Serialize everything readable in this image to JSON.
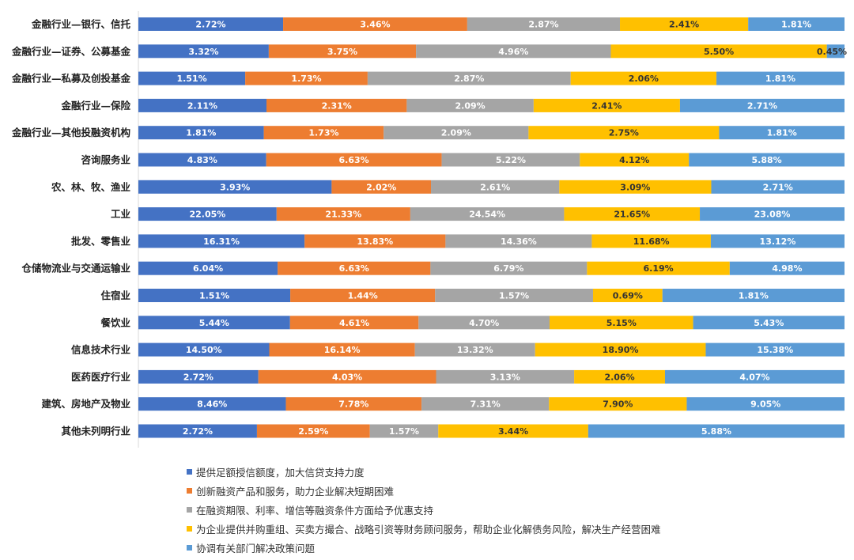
{
  "chart_data": {
    "type": "bar",
    "orientation": "horizontal",
    "stacked": "percent",
    "title": "",
    "xlabel": "",
    "ylabel": "",
    "grid": false,
    "legend_position": "bottom",
    "categories": [
      "金融行业—银行、信托",
      "金融行业—证券、公募基金",
      "金融行业—私募及创投基金",
      "金融行业—保险",
      "金融行业—其他投融资机构",
      "咨询服务业",
      "农、林、牧、渔业",
      "工业",
      "批发、零售业",
      "仓储物流业与交通运输业",
      "住宿业",
      "餐饮业",
      "信息技术行业",
      "医药医疗行业",
      "建筑、房地产及物业",
      "其他未列明行业"
    ],
    "series": [
      {
        "name": "提供足额授信额度，加大信贷支持力度",
        "color": "#4472C4",
        "values": [
          2.72,
          3.32,
          1.51,
          2.11,
          1.81,
          4.83,
          3.93,
          22.05,
          16.31,
          6.04,
          1.51,
          5.44,
          14.5,
          2.72,
          8.46,
          2.72
        ],
        "labels": [
          "2.72%",
          "3.32%",
          "1.51%",
          "2.11%",
          "1.81%",
          "4.83%",
          "3.93%",
          "22.05%",
          "16.31%",
          "6.04%",
          "1.51%",
          "5.44%",
          "14.50%",
          "2.72%",
          "8.46%",
          "2.72%"
        ]
      },
      {
        "name": "创新融资产品和服务，助力企业解决短期困难",
        "color": "#ED7D31",
        "values": [
          3.46,
          3.75,
          1.73,
          2.31,
          1.73,
          6.63,
          2.02,
          21.33,
          13.83,
          6.63,
          1.44,
          4.61,
          16.14,
          4.03,
          7.78,
          2.59
        ],
        "labels": [
          "3.46%",
          "3.75%",
          "1.73%",
          "2.31%",
          "1.73%",
          "6.63%",
          "2.02%",
          "21.33%",
          "13.83%",
          "6.63%",
          "1.44%",
          "4.61%",
          "16.14%",
          "4.03%",
          "7.78%",
          "2.59%"
        ]
      },
      {
        "name": "在融资期限、利率、增信等融资条件方面给予优惠支持",
        "color": "#A5A5A5",
        "values": [
          2.87,
          4.96,
          2.87,
          2.09,
          2.09,
          5.22,
          2.61,
          24.54,
          14.36,
          6.79,
          1.57,
          4.7,
          13.32,
          3.13,
          7.31,
          1.57
        ],
        "labels": [
          "2.87%",
          "4.96%",
          "2.87%",
          "2.09%",
          "2.09%",
          "5.22%",
          "2.61%",
          "24.54%",
          "14.36%",
          "6.79%",
          "1.57%",
          "4.70%",
          "13.32%",
          "3.13%",
          "7.31%",
          "1.57%"
        ]
      },
      {
        "name": "为企业提供并购重组、买卖方撮合、战略引资等财务顾问服务，帮助企业化解债务风险，解决生产经营困难",
        "color": "#FFC000",
        "values": [
          2.41,
          5.5,
          2.06,
          2.41,
          2.75,
          4.12,
          3.09,
          21.65,
          11.68,
          6.19,
          0.69,
          5.15,
          18.9,
          2.06,
          7.9,
          3.44
        ],
        "labels": [
          "2.41%",
          "5.50%",
          "2.06%",
          "2.41%",
          "2.75%",
          "4.12%",
          "3.09%",
          "21.65%",
          "11.68%",
          "6.19%",
          "0.69%",
          "5.15%",
          "18.90%",
          "2.06%",
          "7.90%",
          "3.44%"
        ]
      },
      {
        "name": "协调有关部门解决政策问题",
        "color": "#5B9BD5",
        "values": [
          1.81,
          0.45,
          1.81,
          2.71,
          1.81,
          5.88,
          2.71,
          23.08,
          13.12,
          4.98,
          1.81,
          5.43,
          15.38,
          4.07,
          9.05,
          5.88
        ],
        "labels": [
          "1.81%",
          "0.45%",
          "1.81%",
          "2.71%",
          "1.81%",
          "5.88%",
          "2.71%",
          "23.08%",
          "13.12%",
          "4.98%",
          "1.81%",
          "5.43%",
          "15.38%",
          "4.07%",
          "9.05%",
          "5.88%"
        ]
      }
    ]
  }
}
